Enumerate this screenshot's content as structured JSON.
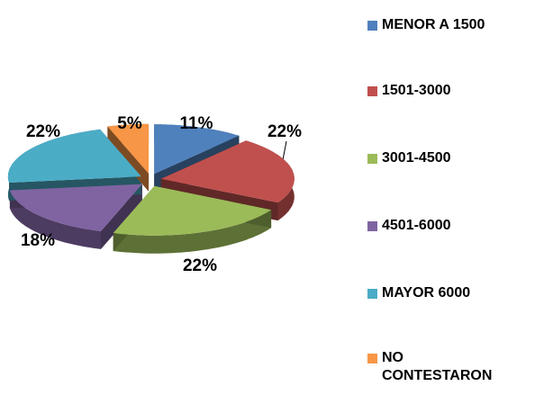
{
  "chart_data": {
    "type": "pie",
    "categories": [
      "MENOR A 1500",
      "1501-3000",
      "3001-4500",
      "4501-6000",
      "MAYOR 6000",
      "NO CONTESTARON"
    ],
    "values": [
      11,
      22,
      22,
      18,
      22,
      5
    ],
    "value_labels": [
      "11%",
      "22%",
      "22%",
      "18%",
      "22%",
      "5%"
    ],
    "colors": [
      "#4f81bd",
      "#c0504d",
      "#9bbb59",
      "#8064a2",
      "#4bacc6",
      "#f79646"
    ],
    "legend": "right"
  }
}
